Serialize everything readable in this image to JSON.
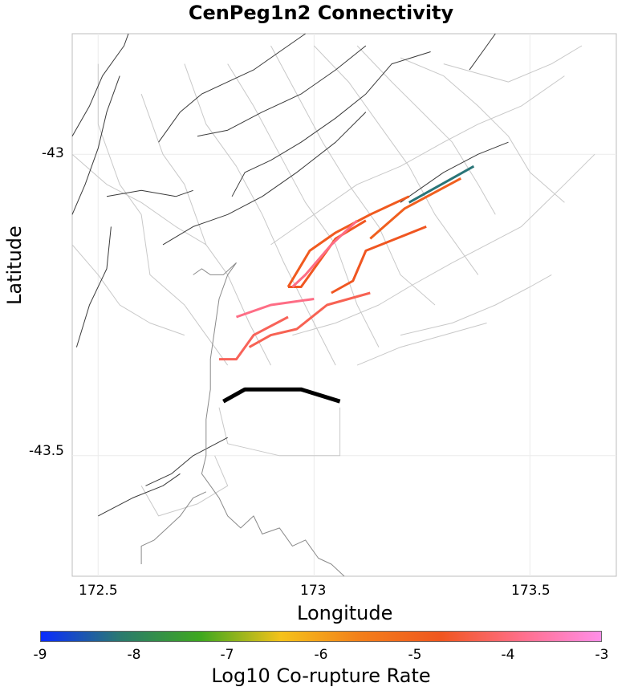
{
  "title": "CenPeg1n2 Connectivity",
  "xlabel": "Longitude",
  "ylabel": "Latitude",
  "x_ticks": [
    "172.5",
    "173",
    "173.5"
  ],
  "y_ticks": [
    "-43",
    "-43.5"
  ],
  "colorbar": {
    "label": "Log10 Co-rupture Rate",
    "ticks": [
      "-9",
      "-8",
      "-7",
      "-6",
      "-5",
      "-4",
      "-3"
    ],
    "stops": [
      "#0a2cff",
      "#2b7a6e",
      "#3ea81e",
      "#f5c21a",
      "#f27e1a",
      "#f0561f",
      "#ff6e8a",
      "#ff8ee8"
    ]
  },
  "colors": {
    "grid": "#ebebeb",
    "fault_section": "#c8c8c8",
    "fault_trace": "#3a3a3a",
    "coastline": "#8a8a8a",
    "source_fault": "#000000"
  },
  "map_data": {
    "lon_range": [
      172.44,
      173.7
    ],
    "lat_range": [
      -43.7,
      -42.8
    ],
    "source_fault": [
      [
        172.79,
        -43.41
      ],
      [
        172.84,
        -43.39
      ],
      [
        172.91,
        -43.39
      ],
      [
        172.97,
        -43.39
      ],
      [
        173.06,
        -43.41
      ]
    ],
    "ruptures": [
      {
        "rate": -8.2,
        "coords": [
          [
            173.22,
            -43.08
          ],
          [
            173.37,
            -43.02
          ]
        ]
      },
      {
        "rate": -4.9,
        "coords": [
          [
            173.13,
            -43.14
          ],
          [
            173.21,
            -43.09
          ],
          [
            173.34,
            -43.04
          ]
        ]
      },
      {
        "rate": -4.8,
        "coords": [
          [
            172.94,
            -43.22
          ],
          [
            172.99,
            -43.16
          ],
          [
            173.05,
            -43.13
          ],
          [
            173.13,
            -43.1
          ],
          [
            173.22,
            -43.07
          ]
        ]
      },
      {
        "rate": -4.7,
        "coords": [
          [
            172.94,
            -43.22
          ],
          [
            172.97,
            -43.22
          ],
          [
            173.0,
            -43.19
          ],
          [
            173.05,
            -43.14
          ],
          [
            173.12,
            -43.11
          ]
        ]
      },
      {
        "rate": -4.7,
        "coords": [
          [
            173.04,
            -43.23
          ],
          [
            173.09,
            -43.21
          ],
          [
            173.12,
            -43.16
          ],
          [
            173.19,
            -43.14
          ],
          [
            173.26,
            -43.12
          ]
        ]
      },
      {
        "rate": -4.3,
        "coords": [
          [
            172.85,
            -43.32
          ],
          [
            172.9,
            -43.3
          ],
          [
            172.96,
            -43.29
          ],
          [
            173.03,
            -43.25
          ],
          [
            173.13,
            -43.23
          ]
        ]
      },
      {
        "rate": -4.25,
        "coords": [
          [
            172.78,
            -43.34
          ],
          [
            172.82,
            -43.34
          ],
          [
            172.86,
            -43.3
          ],
          [
            172.94,
            -43.27
          ]
        ]
      },
      {
        "rate": -3.9,
        "coords": [
          [
            172.82,
            -43.27
          ],
          [
            172.9,
            -43.25
          ],
          [
            173.0,
            -43.24
          ]
        ]
      },
      {
        "rate": -3.9,
        "coords": [
          [
            172.95,
            -43.22
          ],
          [
            172.98,
            -43.2
          ],
          [
            173.04,
            -43.15
          ],
          [
            173.1,
            -43.11
          ]
        ]
      }
    ],
    "fault_traces": [
      [
        [
          172.44,
          -42.97
        ],
        [
          172.48,
          -42.92
        ],
        [
          172.51,
          -42.87
        ],
        [
          172.56,
          -42.82
        ],
        [
          172.57,
          -42.8
        ]
      ],
      [
        [
          172.44,
          -43.1
        ],
        [
          172.47,
          -43.05
        ],
        [
          172.5,
          -42.99
        ],
        [
          172.52,
          -42.93
        ],
        [
          172.55,
          -42.87
        ]
      ],
      [
        [
          172.45,
          -43.32
        ],
        [
          172.48,
          -43.25
        ],
        [
          172.52,
          -43.19
        ],
        [
          172.53,
          -43.12
        ]
      ],
      [
        [
          172.52,
          -43.07
        ],
        [
          172.6,
          -43.06
        ],
        [
          172.68,
          -43.07
        ],
        [
          172.72,
          -43.06
        ]
      ],
      [
        [
          172.64,
          -42.98
        ],
        [
          172.69,
          -42.93
        ],
        [
          172.74,
          -42.9
        ],
        [
          172.8,
          -42.88
        ],
        [
          172.86,
          -42.86
        ],
        [
          172.92,
          -42.83
        ],
        [
          172.98,
          -42.8
        ]
      ],
      [
        [
          172.73,
          -42.97
        ],
        [
          172.8,
          -42.96
        ],
        [
          172.88,
          -42.93
        ],
        [
          172.97,
          -42.9
        ],
        [
          173.05,
          -42.86
        ],
        [
          173.12,
          -42.82
        ]
      ],
      [
        [
          172.81,
          -43.07
        ],
        [
          172.84,
          -43.03
        ],
        [
          172.9,
          -43.01
        ],
        [
          172.97,
          -42.98
        ],
        [
          173.05,
          -42.94
        ],
        [
          173.12,
          -42.9
        ],
        [
          173.18,
          -42.85
        ],
        [
          173.27,
          -42.83
        ]
      ],
      [
        [
          172.65,
          -43.15
        ],
        [
          172.72,
          -43.12
        ],
        [
          172.8,
          -43.1
        ],
        [
          172.88,
          -43.07
        ],
        [
          172.96,
          -43.03
        ],
        [
          173.05,
          -42.98
        ],
        [
          173.12,
          -42.93
        ]
      ],
      [
        [
          173.2,
          -43.08
        ],
        [
          173.3,
          -43.03
        ],
        [
          173.38,
          -43.0
        ],
        [
          173.45,
          -42.98
        ]
      ],
      [
        [
          173.36,
          -42.86
        ],
        [
          173.4,
          -42.82
        ],
        [
          173.42,
          -42.8
        ]
      ],
      [
        [
          172.61,
          -43.55
        ],
        [
          172.67,
          -43.53
        ],
        [
          172.72,
          -43.5
        ],
        [
          172.8,
          -43.47
        ]
      ],
      [
        [
          172.5,
          -43.6
        ],
        [
          172.58,
          -43.57
        ],
        [
          172.65,
          -43.55
        ],
        [
          172.69,
          -43.53
        ]
      ]
    ],
    "fault_sections": [
      [
        [
          172.5,
          -42.85
        ],
        [
          172.5,
          -42.95
        ],
        [
          172.55,
          -43.05
        ],
        [
          172.6,
          -43.1
        ],
        [
          172.62,
          -43.2
        ],
        [
          172.7,
          -43.25
        ],
        [
          172.75,
          -43.3
        ],
        [
          172.8,
          -43.35
        ]
      ],
      [
        [
          172.6,
          -42.9
        ],
        [
          172.65,
          -43.0
        ],
        [
          172.7,
          -43.05
        ],
        [
          172.75,
          -43.15
        ],
        [
          172.8,
          -43.2
        ],
        [
          172.85,
          -43.28
        ],
        [
          172.9,
          -43.35
        ]
      ],
      [
        [
          172.7,
          -42.85
        ],
        [
          172.75,
          -42.95
        ],
        [
          172.82,
          -43.02
        ],
        [
          172.88,
          -43.1
        ],
        [
          172.93,
          -43.18
        ],
        [
          173.0,
          -43.28
        ],
        [
          173.05,
          -43.35
        ]
      ],
      [
        [
          172.8,
          -42.85
        ],
        [
          172.86,
          -42.92
        ],
        [
          172.92,
          -43.0
        ],
        [
          172.98,
          -43.08
        ],
        [
          173.05,
          -43.15
        ],
        [
          173.1,
          -43.25
        ],
        [
          173.15,
          -43.32
        ]
      ],
      [
        [
          172.9,
          -42.82
        ],
        [
          172.96,
          -42.9
        ],
        [
          173.02,
          -42.98
        ],
        [
          173.08,
          -43.05
        ],
        [
          173.15,
          -43.12
        ],
        [
          173.2,
          -43.2
        ],
        [
          173.28,
          -43.25
        ]
      ],
      [
        [
          173.0,
          -42.82
        ],
        [
          173.08,
          -42.88
        ],
        [
          173.15,
          -42.95
        ],
        [
          173.22,
          -43.02
        ],
        [
          173.28,
          -43.1
        ],
        [
          173.33,
          -43.15
        ],
        [
          173.38,
          -43.2
        ]
      ],
      [
        [
          173.1,
          -42.82
        ],
        [
          173.18,
          -42.88
        ],
        [
          173.25,
          -42.93
        ],
        [
          173.32,
          -42.98
        ],
        [
          173.38,
          -43.05
        ],
        [
          173.42,
          -43.1
        ]
      ],
      [
        [
          173.2,
          -42.84
        ],
        [
          173.3,
          -42.87
        ],
        [
          173.38,
          -42.92
        ],
        [
          173.45,
          -42.97
        ],
        [
          173.5,
          -43.03
        ],
        [
          173.58,
          -43.08
        ]
      ],
      [
        [
          172.44,
          -43.0
        ],
        [
          172.52,
          -43.05
        ],
        [
          172.6,
          -43.08
        ],
        [
          172.68,
          -43.12
        ],
        [
          172.75,
          -43.15
        ]
      ],
      [
        [
          172.44,
          -43.15
        ],
        [
          172.5,
          -43.2
        ],
        [
          172.55,
          -43.25
        ],
        [
          172.62,
          -43.28
        ],
        [
          172.7,
          -43.3
        ]
      ],
      [
        [
          172.9,
          -43.15
        ],
        [
          173.0,
          -43.1
        ],
        [
          173.1,
          -43.05
        ],
        [
          173.2,
          -43.02
        ],
        [
          173.3,
          -42.98
        ],
        [
          173.38,
          -42.95
        ],
        [
          173.48,
          -42.92
        ],
        [
          173.58,
          -42.87
        ]
      ],
      [
        [
          172.95,
          -43.3
        ],
        [
          173.05,
          -43.28
        ],
        [
          173.15,
          -43.25
        ],
        [
          173.22,
          -43.22
        ],
        [
          173.32,
          -43.18
        ],
        [
          173.4,
          -43.15
        ],
        [
          173.48,
          -43.12
        ],
        [
          173.58,
          -43.05
        ],
        [
          173.65,
          -43.0
        ]
      ],
      [
        [
          172.78,
          -43.42
        ],
        [
          172.8,
          -43.48
        ],
        [
          172.92,
          -43.5
        ],
        [
          173.06,
          -43.5
        ],
        [
          173.06,
          -43.42
        ]
      ],
      [
        [
          172.6,
          -43.55
        ],
        [
          172.64,
          -43.6
        ],
        [
          172.73,
          -43.58
        ],
        [
          172.8,
          -43.55
        ],
        [
          172.77,
          -43.5
        ]
      ],
      [
        [
          173.3,
          -42.85
        ],
        [
          173.45,
          -42.88
        ],
        [
          173.55,
          -42.85
        ],
        [
          173.62,
          -42.82
        ]
      ],
      [
        [
          173.2,
          -43.3
        ],
        [
          173.32,
          -43.28
        ],
        [
          173.42,
          -43.25
        ],
        [
          173.5,
          -43.22
        ],
        [
          173.55,
          -43.2
        ]
      ],
      [
        [
          173.1,
          -43.35
        ],
        [
          173.2,
          -43.32
        ],
        [
          173.3,
          -43.3
        ],
        [
          173.4,
          -43.28
        ]
      ]
    ],
    "coastline": [
      [
        [
          172.82,
          -43.18
        ],
        [
          172.8,
          -43.2
        ],
        [
          172.78,
          -43.24
        ],
        [
          172.77,
          -43.29
        ],
        [
          172.76,
          -43.34
        ],
        [
          172.76,
          -43.39
        ],
        [
          172.75,
          -43.44
        ],
        [
          172.75,
          -43.5
        ],
        [
          172.74,
          -43.53
        ],
        [
          172.76,
          -43.55
        ],
        [
          172.78,
          -43.57
        ],
        [
          172.8,
          -43.6
        ],
        [
          172.83,
          -43.62
        ],
        [
          172.86,
          -43.6
        ],
        [
          172.88,
          -43.63
        ],
        [
          172.92,
          -43.62
        ],
        [
          172.95,
          -43.65
        ],
        [
          172.98,
          -43.64
        ],
        [
          173.01,
          -43.67
        ],
        [
          173.04,
          -43.68
        ],
        [
          173.07,
          -43.7
        ]
      ],
      [
        [
          172.75,
          -43.56
        ],
        [
          172.72,
          -43.57
        ],
        [
          172.69,
          -43.6
        ],
        [
          172.66,
          -43.62
        ],
        [
          172.63,
          -43.64
        ],
        [
          172.6,
          -43.65
        ],
        [
          172.6,
          -43.68
        ]
      ],
      [
        [
          172.82,
          -43.18
        ],
        [
          172.79,
          -43.2
        ],
        [
          172.76,
          -43.2
        ],
        [
          172.74,
          -43.19
        ],
        [
          172.72,
          -43.2
        ]
      ]
    ]
  }
}
